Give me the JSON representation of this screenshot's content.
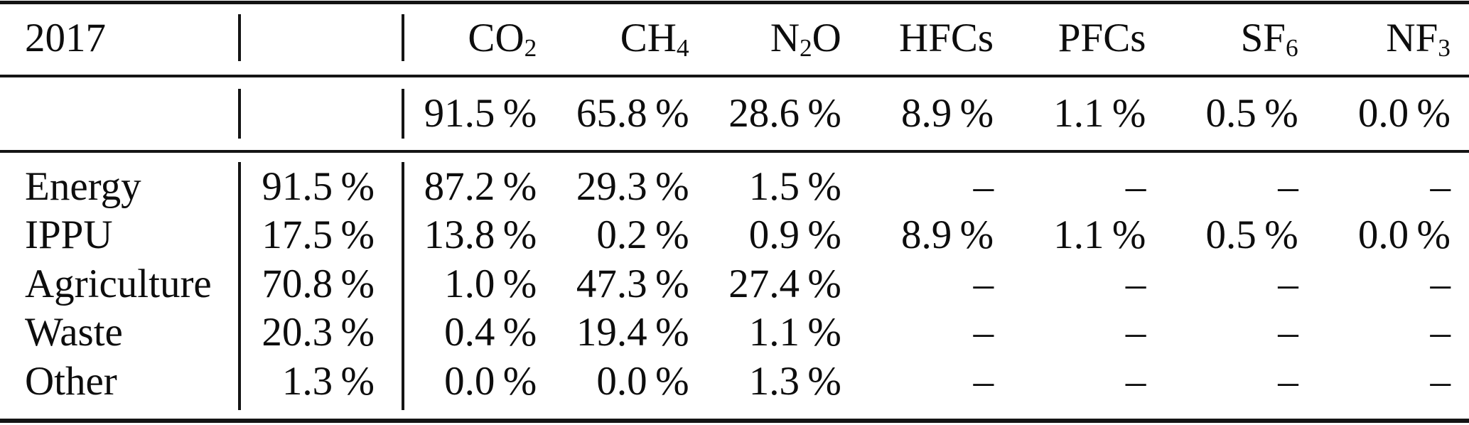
{
  "table": {
    "year_header": "2017",
    "gas_headers": [
      {
        "base": "CO",
        "sub": "2"
      },
      {
        "base": "CH",
        "sub": "4"
      },
      {
        "base": "N",
        "sub": "2",
        "post": "O"
      },
      {
        "base": "HFCs"
      },
      {
        "base": "PFCs"
      },
      {
        "base": "SF",
        "sub": "6"
      },
      {
        "base": "NF",
        "sub": "3"
      }
    ],
    "gas_totals": [
      "91.5 %",
      "65.8 %",
      "28.6 %",
      "8.9 %",
      "1.1 %",
      "0.5 %",
      "0.0 %"
    ],
    "rows": [
      {
        "label": "Energy",
        "sector_total": "91.5 %",
        "values": [
          "87.2 %",
          "29.3 %",
          "1.5 %",
          "–",
          "–",
          "–",
          "–"
        ]
      },
      {
        "label": "IPPU",
        "sector_total": "17.5 %",
        "values": [
          "13.8 %",
          "0.2 %",
          "0.9 %",
          "8.9 %",
          "1.1 %",
          "0.5 %",
          "0.0 %"
        ]
      },
      {
        "label": "Agriculture",
        "sector_total": "70.8 %",
        "values": [
          "1.0 %",
          "47.3 %",
          "27.4 %",
          "–",
          "–",
          "–",
          "–"
        ]
      },
      {
        "label": "Waste",
        "sector_total": "20.3 %",
        "values": [
          "0.4 %",
          "19.4 %",
          "1.1 %",
          "–",
          "–",
          "–",
          "–"
        ]
      },
      {
        "label": "Other",
        "sector_total": "1.3 %",
        "values": [
          "0.0 %",
          "0.0 %",
          "1.3 %",
          "–",
          "–",
          "–",
          "–"
        ]
      }
    ],
    "colors": {
      "text": "#0d0d0d",
      "rule": "#141414",
      "background": "#ffffff"
    }
  }
}
